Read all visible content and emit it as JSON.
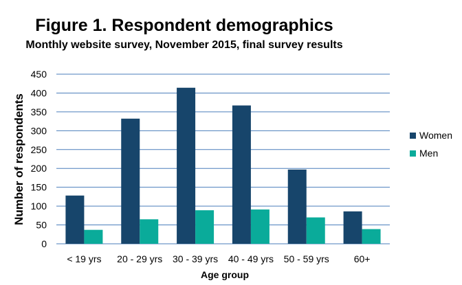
{
  "chart_data": {
    "type": "bar",
    "title": "Figure 1. Respondent demographics",
    "subtitle": "Monthly website survey, November 2015, final survey results",
    "xlabel": "Age group",
    "ylabel": "Number  of respondents",
    "ylim": [
      0,
      450
    ],
    "yticks": [
      0,
      50,
      100,
      150,
      200,
      250,
      300,
      350,
      400,
      450
    ],
    "categories": [
      "< 19 yrs",
      "20 - 29 yrs",
      "30 - 39 yrs",
      "40 - 49 yrs",
      "50 - 59 yrs",
      "60+"
    ],
    "series": [
      {
        "name": "Women",
        "color": "#17456b",
        "values": [
          128,
          332,
          414,
          367,
          197,
          86
        ]
      },
      {
        "name": "Men",
        "color": "#0aab9a",
        "values": [
          37,
          65,
          89,
          91,
          70,
          39
        ]
      }
    ],
    "grid": true,
    "legend_position": "right"
  }
}
